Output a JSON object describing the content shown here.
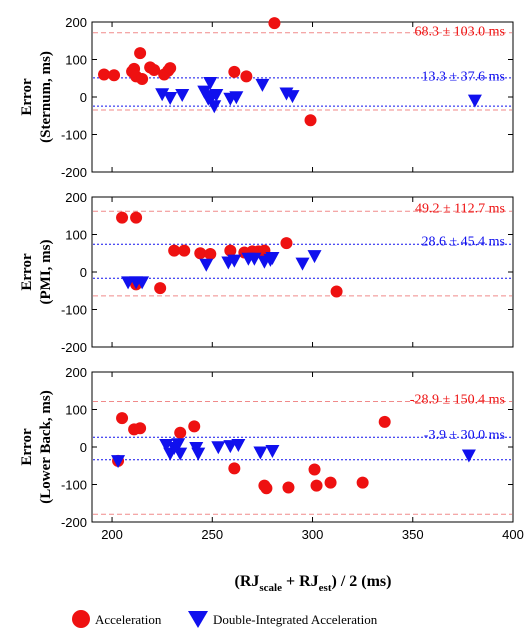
{
  "colors": {
    "acceleration": "#ee1111",
    "double_integrated": "#1010ee",
    "axis": "#000000"
  },
  "legend": {
    "acceleration": "Acceleration",
    "double_integrated": "Double-Integrated Acceleration"
  },
  "xlabel": {
    "prefix": "(RJ",
    "sub1": "scale",
    "mid": " + RJ",
    "sub2": "est",
    "suffix": ") / 2  (ms)"
  },
  "chart_data": [
    {
      "type": "scatter",
      "ylabel_line1": "Error",
      "ylabel_line2": "(Sternum, ms)",
      "xlim": [
        190,
        400
      ],
      "ylim": [
        -200,
        200
      ],
      "xticks": [
        200,
        250,
        300,
        350,
        400
      ],
      "yticks": [
        -200,
        -100,
        0,
        100,
        200
      ],
      "annotations": [
        {
          "text": "68.3 ± 103.0 ms",
          "series": "acceleration",
          "x": 396,
          "y": 178
        },
        {
          "text": "13.3 ± 37.6 ms",
          "series": "double_integrated",
          "x": 396,
          "y": 58
        }
      ],
      "lines": [
        {
          "series": "acceleration",
          "y": 171.3
        },
        {
          "series": "acceleration",
          "y": -34.7
        },
        {
          "series": "double_integrated",
          "y": 50.9
        },
        {
          "series": "double_integrated",
          "y": -24.3
        }
      ],
      "series": [
        {
          "name": "Acceleration",
          "marker": "circle",
          "points": [
            [
              196,
              60
            ],
            [
              201,
              58
            ],
            [
              210,
              68
            ],
            [
              211,
              75
            ],
            [
              212,
              55
            ],
            [
              214,
              117
            ],
            [
              215,
              48
            ],
            [
              219,
              79
            ],
            [
              221,
              72
            ],
            [
              226,
              60
            ],
            [
              228,
              70
            ],
            [
              229,
              77
            ],
            [
              261,
              67
            ],
            [
              267,
              55
            ],
            [
              281,
              197
            ],
            [
              299,
              -62
            ]
          ]
        },
        {
          "name": "Double-Integrated Acceleration",
          "marker": "triangle",
          "points": [
            [
              225,
              10
            ],
            [
              229,
              0
            ],
            [
              235,
              8
            ],
            [
              246,
              17
            ],
            [
              248,
              -2
            ],
            [
              249,
              40
            ],
            [
              250,
              5
            ],
            [
              251,
              -22
            ],
            [
              252,
              8
            ],
            [
              259,
              -2
            ],
            [
              262,
              2
            ],
            [
              275,
              35
            ],
            [
              287,
              12
            ],
            [
              290,
              5
            ],
            [
              381,
              -7
            ]
          ]
        }
      ]
    },
    {
      "type": "scatter",
      "ylabel_line1": "Error",
      "ylabel_line2": "(PMI, ms)",
      "xlim": [
        190,
        400
      ],
      "ylim": [
        -200,
        200
      ],
      "xticks": [
        200,
        250,
        300,
        350,
        400
      ],
      "yticks": [
        -200,
        -100,
        0,
        100,
        200
      ],
      "annotations": [
        {
          "text": "49.2 ± 112.7 ms",
          "series": "acceleration",
          "x": 396,
          "y": 172
        },
        {
          "text": "28.6 ± 45.4 ms",
          "series": "double_integrated",
          "x": 396,
          "y": 84
        }
      ],
      "lines": [
        {
          "series": "acceleration",
          "y": 162.0
        },
        {
          "series": "acceleration",
          "y": -63.5
        },
        {
          "series": "double_integrated",
          "y": 74.0
        },
        {
          "series": "double_integrated",
          "y": -16.8
        }
      ],
      "series": [
        {
          "name": "Acceleration",
          "marker": "circle",
          "points": [
            [
              205,
              145
            ],
            [
              212,
              145
            ],
            [
              212,
              -33
            ],
            [
              224,
              -43
            ],
            [
              231,
              57
            ],
            [
              236,
              57
            ],
            [
              244,
              50
            ],
            [
              249,
              48
            ],
            [
              259,
              57
            ],
            [
              266,
              52
            ],
            [
              270,
              55
            ],
            [
              273,
              55
            ],
            [
              276,
              57
            ],
            [
              287,
              77
            ],
            [
              312,
              -52
            ]
          ]
        },
        {
          "name": "Double-Integrated Acceleration",
          "marker": "triangle",
          "points": [
            [
              208,
              -25
            ],
            [
              212,
              -25
            ],
            [
              215,
              -25
            ],
            [
              247,
              22
            ],
            [
              258,
              28
            ],
            [
              261,
              33
            ],
            [
              268,
              38
            ],
            [
              271,
              38
            ],
            [
              276,
              30
            ],
            [
              279,
              35
            ],
            [
              280,
              40
            ],
            [
              295,
              25
            ],
            [
              301,
              45
            ]
          ]
        }
      ]
    },
    {
      "type": "scatter",
      "ylabel_line1": "Error",
      "ylabel_line2": "(Lower Back, ms)",
      "xlim": [
        190,
        400
      ],
      "ylim": [
        -200,
        200
      ],
      "xticks": [
        200,
        250,
        300,
        350,
        400
      ],
      "yticks": [
        -200,
        -100,
        0,
        100,
        200
      ],
      "annotations": [
        {
          "text": "-28.9 ± 150.4 ms",
          "series": "acceleration",
          "x": 396,
          "y": 130
        },
        {
          "text": "-3.9 ± 30.0 ms",
          "series": "double_integrated",
          "x": 396,
          "y": 35
        }
      ],
      "lines": [
        {
          "series": "acceleration",
          "y": 121.5
        },
        {
          "series": "acceleration",
          "y": -179.3
        },
        {
          "series": "double_integrated",
          "y": 26.1
        },
        {
          "series": "double_integrated",
          "y": -33.9
        }
      ],
      "series": [
        {
          "name": "Acceleration",
          "marker": "circle",
          "points": [
            [
              203,
              -37
            ],
            [
              205,
              77
            ],
            [
              211,
              47
            ],
            [
              214,
              50
            ],
            [
              234,
              38
            ],
            [
              241,
              55
            ],
            [
              261,
              -57
            ],
            [
              276,
              -103
            ],
            [
              277,
              -110
            ],
            [
              288,
              -108
            ],
            [
              301,
              -60
            ],
            [
              302,
              -103
            ],
            [
              309,
              -95
            ],
            [
              325,
              -95
            ],
            [
              336,
              67
            ]
          ]
        },
        {
          "name": "Double-Integrated Acceleration",
          "marker": "triangle",
          "points": [
            [
              203,
              -35
            ],
            [
              227,
              8
            ],
            [
              229,
              -15
            ],
            [
              231,
              0
            ],
            [
              233,
              10
            ],
            [
              234,
              -15
            ],
            [
              242,
              0
            ],
            [
              243,
              -15
            ],
            [
              253,
              2
            ],
            [
              259,
              5
            ],
            [
              263,
              8
            ],
            [
              274,
              -12
            ],
            [
              280,
              -8
            ],
            [
              378,
              -20
            ]
          ]
        }
      ]
    }
  ]
}
